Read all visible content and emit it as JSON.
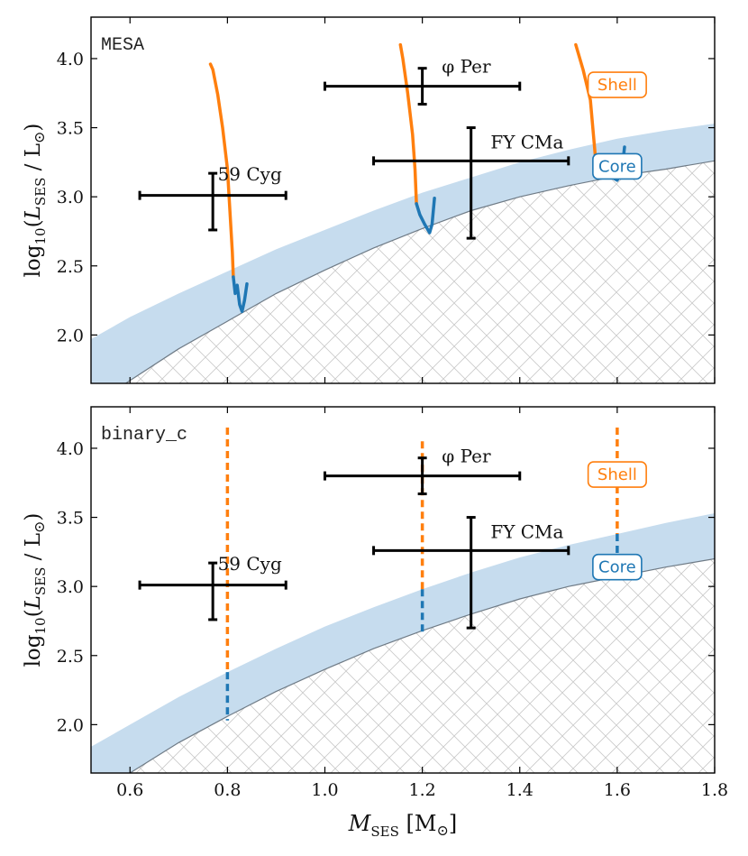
{
  "chart_data": [
    {
      "type": "line",
      "panel_label": "MESA",
      "xlim": [
        0.52,
        1.8
      ],
      "ylim": [
        1.65,
        4.3
      ],
      "x_ticks": [
        0.6,
        0.8,
        1.0,
        1.2,
        1.4,
        1.6,
        1.8
      ],
      "x_tick_labels": [
        "0.6",
        "0.8",
        "1.0",
        "1.2",
        "1.4",
        "1.6",
        "1.8"
      ],
      "show_x_tick_labels": false,
      "y_ticks": [
        2.0,
        2.5,
        3.0,
        3.5,
        4.0
      ],
      "y_tick_labels": [
        "2.0",
        "2.5",
        "3.0",
        "3.5",
        "4.0"
      ],
      "ylabel": "log10(LSES / L⊙)",
      "ylabel_parts": {
        "pre": "log",
        "sub1": "10",
        "mid": "(",
        "var": "L",
        "sub2": "SES",
        "post": " / L",
        "sun": "⊙",
        "close": ")"
      },
      "grid": false,
      "zones": [
        {
          "name": "Core",
          "color": "#1f77b4",
          "label_at": [
            1.6,
            3.22
          ]
        },
        {
          "name": "Shell",
          "color": "#ff7f0e",
          "label_at": [
            1.6,
            3.81
          ]
        }
      ],
      "band_lower": {
        "x": [
          0.52,
          0.6,
          0.7,
          0.8,
          0.9,
          1.0,
          1.1,
          1.2,
          1.3,
          1.4,
          1.5,
          1.6,
          1.7,
          1.8
        ],
        "y": [
          1.48,
          1.67,
          1.9,
          2.1,
          2.3,
          2.47,
          2.63,
          2.77,
          2.9,
          3.0,
          3.08,
          3.15,
          3.2,
          3.26
        ]
      },
      "band_upper": {
        "x": [
          0.52,
          0.6,
          0.7,
          0.8,
          0.9,
          1.0,
          1.1,
          1.2,
          1.3,
          1.4,
          1.5,
          1.6,
          1.7,
          1.8
        ],
        "y": [
          1.97,
          2.13,
          2.3,
          2.46,
          2.62,
          2.76,
          2.9,
          3.03,
          3.14,
          3.25,
          3.34,
          3.42,
          3.48,
          3.53
        ]
      },
      "band_color": "#c6dcee",
      "tracks": [
        {
          "shell": {
            "x": [
              0.765,
              0.77,
              0.78,
              0.79,
              0.8,
              0.805,
              0.81,
              0.812
            ],
            "y": [
              3.96,
              3.92,
              3.74,
              3.5,
              3.2,
              2.9,
              2.6,
              2.42
            ]
          },
          "core": {
            "x": [
              0.812,
              0.816,
              0.82,
              0.825,
              0.83,
              0.835,
              0.84
            ],
            "y": [
              2.42,
              2.3,
              2.36,
              2.22,
              2.17,
              2.25,
              2.37
            ]
          }
        },
        {
          "shell": {
            "x": [
              1.155,
              1.16,
              1.17,
              1.18,
              1.185,
              1.188
            ],
            "y": [
              4.1,
              4.0,
              3.75,
              3.45,
              3.2,
              2.95
            ]
          },
          "core": {
            "x": [
              1.188,
              1.195,
              1.205,
              1.215,
              1.22,
              1.225
            ],
            "y": [
              2.95,
              2.87,
              2.8,
              2.74,
              2.8,
              2.99
            ]
          }
        },
        {
          "shell": {
            "x": [
              1.515,
              1.53,
              1.545,
              1.55,
              1.555
            ],
            "y": [
              4.1,
              3.92,
              3.7,
              3.5,
              3.3
            ]
          },
          "core": {
            "x": [
              1.555,
              1.57,
              1.59,
              1.6,
              1.61,
              1.615
            ],
            "y": [
              3.3,
              3.22,
              3.14,
              3.12,
              3.2,
              3.36
            ]
          }
        }
      ],
      "stars": [
        {
          "name": "59 Cyg",
          "x": 0.77,
          "y": 3.01,
          "xerr": [
            0.15,
            0.15
          ],
          "yerr": [
            0.25,
            0.16
          ],
          "label_at": [
            0.78,
            3.12
          ]
        },
        {
          "name": "φ Per",
          "x": 1.2,
          "y": 3.8,
          "xerr": [
            0.2,
            0.2
          ],
          "yerr": [
            0.13,
            0.13
          ],
          "label_at": [
            1.24,
            3.9
          ]
        },
        {
          "name": "FY CMa",
          "x": 1.3,
          "y": 3.26,
          "xerr": [
            0.2,
            0.2
          ],
          "yerr": [
            0.56,
            0.24
          ],
          "label_at": [
            1.34,
            3.35
          ]
        }
      ]
    },
    {
      "type": "line",
      "panel_label": "binary_c",
      "xlim": [
        0.52,
        1.8
      ],
      "ylim": [
        1.65,
        4.3
      ],
      "x_ticks": [
        0.6,
        0.8,
        1.0,
        1.2,
        1.4,
        1.6,
        1.8
      ],
      "x_tick_labels": [
        "0.6",
        "0.8",
        "1.0",
        "1.2",
        "1.4",
        "1.6",
        "1.8"
      ],
      "show_x_tick_labels": true,
      "y_ticks": [
        2.0,
        2.5,
        3.0,
        3.5,
        4.0
      ],
      "y_tick_labels": [
        "2.0",
        "2.5",
        "3.0",
        "3.5",
        "4.0"
      ],
      "ylabel": "log10(LSES / L⊙)",
      "ylabel_parts": {
        "pre": "log",
        "sub1": "10",
        "mid": "(",
        "var": "L",
        "sub2": "SES",
        "post": " / L",
        "sun": "⊙",
        "close": ")"
      },
      "xlabel": "MSES [M⊙]",
      "xlabel_parts": {
        "var": "M",
        "sub": "SES",
        "post": " [M",
        "sun": "⊙",
        "close": "]"
      },
      "grid": false,
      "zones": [
        {
          "name": "Core",
          "color": "#1f77b4",
          "label_at": [
            1.6,
            3.14
          ]
        },
        {
          "name": "Shell",
          "color": "#ff7f0e",
          "label_at": [
            1.6,
            3.81
          ]
        }
      ],
      "band_lower": {
        "x": [
          0.52,
          0.6,
          0.7,
          0.8,
          0.9,
          1.0,
          1.1,
          1.2,
          1.3,
          1.4,
          1.5,
          1.6,
          1.7,
          1.8
        ],
        "y": [
          1.48,
          1.65,
          1.87,
          2.06,
          2.24,
          2.4,
          2.55,
          2.68,
          2.8,
          2.91,
          3.0,
          3.07,
          3.14,
          3.2
        ]
      },
      "band_upper": {
        "x": [
          0.52,
          0.6,
          0.7,
          0.8,
          0.9,
          1.0,
          1.1,
          1.2,
          1.3,
          1.4,
          1.5,
          1.6,
          1.7,
          1.8
        ],
        "y": [
          1.84,
          2.0,
          2.2,
          2.38,
          2.55,
          2.71,
          2.85,
          2.98,
          3.1,
          3.21,
          3.3,
          3.38,
          3.46,
          3.53
        ]
      },
      "band_color": "#c6dcee",
      "tracks": [
        {
          "x": 0.8,
          "shell": [
            4.15,
            2.38
          ],
          "core": [
            2.38,
            2.03
          ]
        },
        {
          "x": 1.2,
          "shell": [
            4.05,
            2.98
          ],
          "core": [
            2.98,
            2.66
          ]
        },
        {
          "x": 1.6,
          "shell": [
            4.15,
            3.38
          ],
          "core": [
            3.38,
            3.07
          ]
        }
      ],
      "stars": [
        {
          "name": "59 Cyg",
          "x": 0.77,
          "y": 3.01,
          "xerr": [
            0.15,
            0.15
          ],
          "yerr": [
            0.25,
            0.16
          ],
          "label_at": [
            0.78,
            3.12
          ]
        },
        {
          "name": "φ Per",
          "x": 1.2,
          "y": 3.8,
          "xerr": [
            0.2,
            0.2
          ],
          "yerr": [
            0.13,
            0.13
          ],
          "label_at": [
            1.24,
            3.9
          ]
        },
        {
          "name": "FY CMa",
          "x": 1.3,
          "y": 3.26,
          "xerr": [
            0.2,
            0.2
          ],
          "yerr": [
            0.56,
            0.24
          ],
          "label_at": [
            1.34,
            3.35
          ]
        }
      ]
    }
  ]
}
